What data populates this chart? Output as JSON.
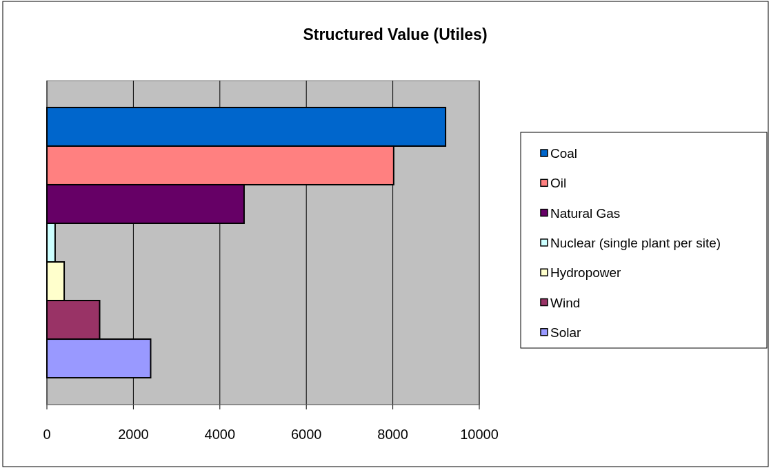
{
  "chart_data": {
    "type": "bar",
    "orientation": "horizontal",
    "title": "Structured Value (Utiles)",
    "categories": [
      null
    ],
    "series": [
      {
        "name": "Coal",
        "color": "#0066cc",
        "values": [
          9220
        ]
      },
      {
        "name": "Oil",
        "color": "#ff8080",
        "values": [
          8020
        ]
      },
      {
        "name": "Natural Gas",
        "color": "#660066",
        "values": [
          4560
        ]
      },
      {
        "name": "Nuclear (single plant per site)",
        "color": "#ccffff",
        "values": [
          190
        ]
      },
      {
        "name": "Hydropower",
        "color": "#ffffcc",
        "values": [
          400
        ]
      },
      {
        "name": "Wind",
        "color": "#993366",
        "values": [
          1220
        ]
      },
      {
        "name": "Solar",
        "color": "#9999ff",
        "values": [
          2400
        ]
      }
    ],
    "xlim": [
      0,
      10000
    ],
    "xticks": [
      0,
      2000,
      4000,
      6000,
      8000,
      10000
    ],
    "grid": "x",
    "legend": "right"
  }
}
